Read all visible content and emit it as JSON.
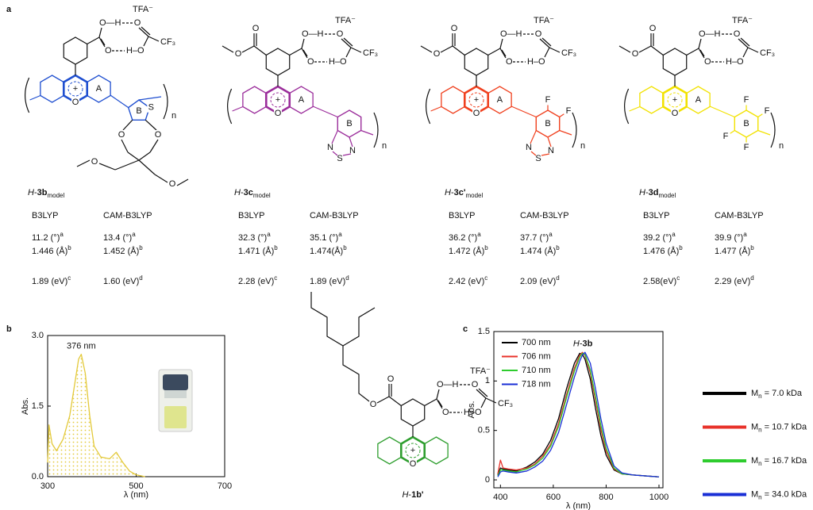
{
  "panel_labels": [
    "a",
    "b",
    "c"
  ],
  "structures": [
    {
      "color": "#1f4fd0",
      "labels": {
        "tfa": "TFA⁻",
        "acid_oh": "O—H",
        "tfa_o": "O",
        "acid_o": "O",
        "tfa_oh": "H–O",
        "cf3": "CF₃",
        "ring_a": "A",
        "ring_b": "B",
        "thio_s": "S",
        "xanthene_o": "O",
        "o_ring1": "O",
        "o_ring2": "O",
        "o_me1": "O",
        "o_me2": "O",
        "repeat": "n",
        "charge": "+"
      }
    },
    {
      "color": "#9b2d9b",
      "labels": {
        "ester_o_top": "O",
        "ester_o": "O",
        "tfa": "TFA⁻",
        "acid_oh": "O—H",
        "tfa_o": "O",
        "acid_o": "O",
        "tfa_oh": "H–O",
        "cf3": "CF₃",
        "ring_a": "A",
        "ring_b": "B",
        "xanthene_o": "O",
        "n1": "N",
        "s": "S",
        "n2": "N",
        "repeat": "n",
        "charge": "+"
      }
    },
    {
      "color": "#f0401e",
      "labels": {
        "ester_o_top": "O",
        "ester_o": "O",
        "tfa": "TFA⁻",
        "acid_oh": "O—H",
        "tfa_o": "O",
        "acid_o": "O",
        "tfa_oh": "H–O",
        "cf3": "CF₃",
        "ring_a": "A",
        "ring_b": "B",
        "xanthene_o": "O",
        "f1": "F",
        "f2": "F",
        "n1": "N",
        "s": "S",
        "n2": "N",
        "repeat": "n",
        "charge": "+"
      }
    },
    {
      "color": "#f2e200",
      "labels": {
        "ester_o_top": "O",
        "ester_o": "O",
        "tfa": "TFA⁻",
        "acid_oh": "O—H",
        "tfa_o": "O",
        "acid_o": "O",
        "tfa_oh": "H–O",
        "cf3": "CF₃",
        "ring_a": "A",
        "ring_b": "B",
        "xanthene_o": "O",
        "f1": "F",
        "f2": "F",
        "f3": "F",
        "f4": "F",
        "repeat": "n",
        "charge": "+"
      }
    }
  ],
  "results": [
    {
      "name_parts": [
        "H",
        "-",
        "3b"
      ],
      "sub": "model",
      "methods": [
        "B3LYP",
        "CAM-B3LYP"
      ],
      "rows": [
        [
          {
            "t": "11.2 (°)",
            "sup": "a"
          },
          {
            "t": "13.4 (°)",
            "sup": "a"
          }
        ],
        [
          {
            "t": "1.446 (Å)",
            "sup": "b"
          },
          {
            "t": "1.452 (Å)",
            "sup": "b"
          }
        ],
        [
          {
            "t": "1.89 (eV)",
            "sup": "c"
          },
          {
            "t": "1.60 (eV)",
            "sup": "d"
          }
        ]
      ]
    },
    {
      "name_parts": [
        "H",
        "-",
        "3c"
      ],
      "sub": "model",
      "methods": [
        "B3LYP",
        "CAM-B3LYP"
      ],
      "rows": [
        [
          {
            "t": "32.3 (°)",
            "sup": "a"
          },
          {
            "t": "35.1 (°)",
            "sup": "a"
          }
        ],
        [
          {
            "t": "1.471 (Å)",
            "sup": "b"
          },
          {
            "t": "1.474(Å)",
            "sup": "b"
          }
        ],
        [
          {
            "t": "2.28 (eV)",
            "sup": "c"
          },
          {
            "t": "1.89 (eV)",
            "sup": "d"
          }
        ]
      ]
    },
    {
      "name_parts": [
        "H",
        "-",
        "3c'"
      ],
      "sub": "model",
      "methods": [
        "B3LYP",
        "CAM-B3LYP"
      ],
      "rows": [
        [
          {
            "t": "36.2 (°)",
            "sup": "a"
          },
          {
            "t": "37.7 (°)",
            "sup": "a"
          }
        ],
        [
          {
            "t": "1.472 (Å)",
            "sup": "b"
          },
          {
            "t": "1.474 (Å)",
            "sup": "b"
          }
        ],
        [
          {
            "t": "2.42 (eV)",
            "sup": "c"
          },
          {
            "t": "2.09 (eV)",
            "sup": "d"
          }
        ]
      ]
    },
    {
      "name_parts": [
        "H",
        "-",
        "3d"
      ],
      "sub": "model",
      "methods": [
        "B3LYP",
        "CAM-B3LYP"
      ],
      "rows": [
        [
          {
            "t": "39.2 (°)",
            "sup": "a"
          },
          {
            "t": "39.9 (°)",
            "sup": "a"
          }
        ],
        [
          {
            "t": "1.476 (Å)",
            "sup": "b"
          },
          {
            "t": "1.477 (Å)",
            "sup": "b"
          }
        ],
        [
          {
            "t": "2.58(eV)",
            "sup": "c"
          },
          {
            "t": "2.29 (eV)",
            "sup": "d"
          }
        ]
      ]
    }
  ],
  "panel_b_structure": {
    "color": "#2e9e2e",
    "name_parts": [
      "H",
      "-",
      "1b'"
    ],
    "labels": {
      "ester_o_top": "O",
      "ester_o": "O",
      "tfa": "TFA⁻",
      "acid_oh": "O—H",
      "tfa_o": "O",
      "acid_o": "O",
      "tfa_oh": "H–O",
      "cf3": "CF₃",
      "xanthene_o": "O",
      "charge": "+"
    }
  },
  "chart_data": [
    {
      "type": "line",
      "x": [
        300,
        303,
        310,
        320,
        335,
        350,
        360,
        370,
        376,
        385,
        395,
        405,
        420,
        440,
        455,
        470,
        485,
        500,
        520
      ],
      "values": [
        0.3,
        1.1,
        0.7,
        0.55,
        0.8,
        1.3,
        1.9,
        2.5,
        2.6,
        2.2,
        1.3,
        0.65,
        0.42,
        0.38,
        0.52,
        0.3,
        0.12,
        0.04,
        0.0
      ],
      "color": "#e3c93a",
      "fill_area": true,
      "xlim": [
        300,
        700
      ],
      "xticks": [
        300,
        500,
        700
      ],
      "ylim": [
        0,
        3
      ],
      "yticks": [
        {
          "value": 0,
          "label": "0.0"
        },
        1.5,
        {
          "value": 3,
          "label": "3.0"
        }
      ],
      "xlabel": "λ (nm)",
      "ylabel": "Abs.",
      "annotation": "376 nm"
    },
    {
      "type": "line",
      "x": [
        390,
        400,
        410,
        430,
        460,
        500,
        530,
        560,
        590,
        620,
        650,
        680,
        700,
        710,
        720,
        740,
        760,
        780,
        800,
        830,
        860,
        900,
        950,
        1000
      ],
      "series": [
        {
          "name": "700 nm",
          "color": "#000000",
          "values": [
            0.05,
            0.12,
            0.11,
            0.1,
            0.09,
            0.13,
            0.18,
            0.26,
            0.4,
            0.62,
            0.92,
            1.18,
            1.28,
            1.27,
            1.22,
            1.02,
            0.72,
            0.45,
            0.25,
            0.1,
            0.06,
            0.05,
            0.04,
            0.03
          ]
        },
        {
          "name": "706 nm",
          "color": "#e8322a",
          "values": [
            0.06,
            0.2,
            0.12,
            0.11,
            0.1,
            0.12,
            0.16,
            0.24,
            0.36,
            0.57,
            0.86,
            1.13,
            1.26,
            1.29,
            1.26,
            1.08,
            0.8,
            0.51,
            0.29,
            0.11,
            0.06,
            0.05,
            0.04,
            0.03
          ]
        },
        {
          "name": "710 nm",
          "color": "#2ecc2e",
          "values": [
            0.04,
            0.1,
            0.1,
            0.09,
            0.08,
            0.11,
            0.15,
            0.22,
            0.34,
            0.54,
            0.83,
            1.1,
            1.24,
            1.28,
            1.27,
            1.11,
            0.84,
            0.55,
            0.32,
            0.12,
            0.06,
            0.05,
            0.04,
            0.03
          ]
        },
        {
          "name": "718 nm",
          "color": "#1a2fd6",
          "values": [
            0.03,
            0.08,
            0.09,
            0.08,
            0.07,
            0.09,
            0.13,
            0.19,
            0.3,
            0.48,
            0.76,
            1.04,
            1.2,
            1.26,
            1.29,
            1.18,
            0.92,
            0.62,
            0.37,
            0.14,
            0.07,
            0.05,
            0.04,
            0.03
          ]
        }
      ],
      "xlim": [
        375,
        1015
      ],
      "xticks": [
        400,
        600,
        800,
        1000
      ],
      "ylim": [
        -0.08,
        1.5
      ],
      "yticks": [
        0,
        0.5,
        1,
        1.5
      ],
      "xlabel": "λ (nm)",
      "ylabel": "Abs.",
      "title_parts": [
        "H",
        "-",
        "3b"
      ],
      "legend": "upper left",
      "mn_legend": [
        {
          "symbol": "M",
          "sub": "n",
          "text": "= 7.0 kDa",
          "color": "#000000"
        },
        {
          "symbol": "M",
          "sub": "n",
          "text": "= 10.7 kDa",
          "color": "#e8322a"
        },
        {
          "symbol": "M",
          "sub": "n",
          "text": "= 16.7 kDa",
          "color": "#2ecc2e"
        },
        {
          "symbol": "M",
          "sub": "n",
          "text": "= 34.0 kDa",
          "color": "#1a2fd6"
        }
      ]
    }
  ]
}
